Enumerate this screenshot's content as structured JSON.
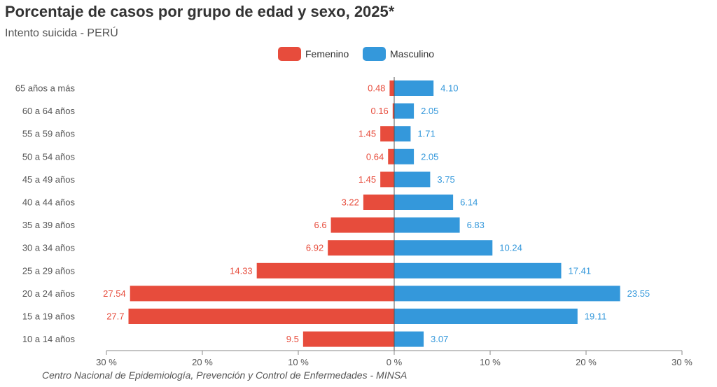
{
  "chart_data": {
    "type": "bar",
    "orientation": "horizontal",
    "title": "Porcentaje de casos por grupo de edad y sexo, 2025*",
    "subtitle": "Intento suicida - PERÚ",
    "categories": [
      "65 años a más",
      "60 a 64 años",
      "55 a 59 años",
      "50 a 54 años",
      "45 a 49 años",
      "40 a 44 años",
      "35 a 39 años",
      "30 a 34 años",
      "25 a 29 años",
      "20 a 24 años",
      "15 a 19 años",
      "10 a 14 años"
    ],
    "series": [
      {
        "name": "Femenino",
        "color": "#E74C3C",
        "values": [
          0.48,
          0.16,
          1.45,
          0.64,
          1.45,
          3.22,
          6.6,
          6.92,
          14.33,
          27.54,
          27.7,
          9.5
        ],
        "labels": [
          "0.48",
          "0.16",
          "1.45",
          "0.64",
          "1.45",
          "3.22",
          "6.6",
          "6.92",
          "14.33",
          "27.54",
          "27.7",
          "9.5"
        ]
      },
      {
        "name": "Masculino",
        "color": "#3498DB",
        "values": [
          4.1,
          2.05,
          1.71,
          2.05,
          3.75,
          6.14,
          6.83,
          10.24,
          17.41,
          23.55,
          19.11,
          3.07
        ],
        "labels": [
          "4.10",
          "2.05",
          "1.71",
          "2.05",
          "3.75",
          "6.14",
          "6.83",
          "10.24",
          "17.41",
          "23.55",
          "19.11",
          "3.07"
        ]
      }
    ],
    "xlim": [
      -30,
      30
    ],
    "ticks": [
      -30,
      -20,
      -10,
      0,
      10,
      20,
      30
    ],
    "tick_labels": [
      "30 %",
      "20 %",
      "10 %",
      "0 %",
      "10 %",
      "20 %",
      "30 %"
    ],
    "legend_position": "top-center",
    "grid": false
  },
  "footer": "Centro Nacional de Epidemiología, Prevención y Control de Enfermedades - MINSA"
}
